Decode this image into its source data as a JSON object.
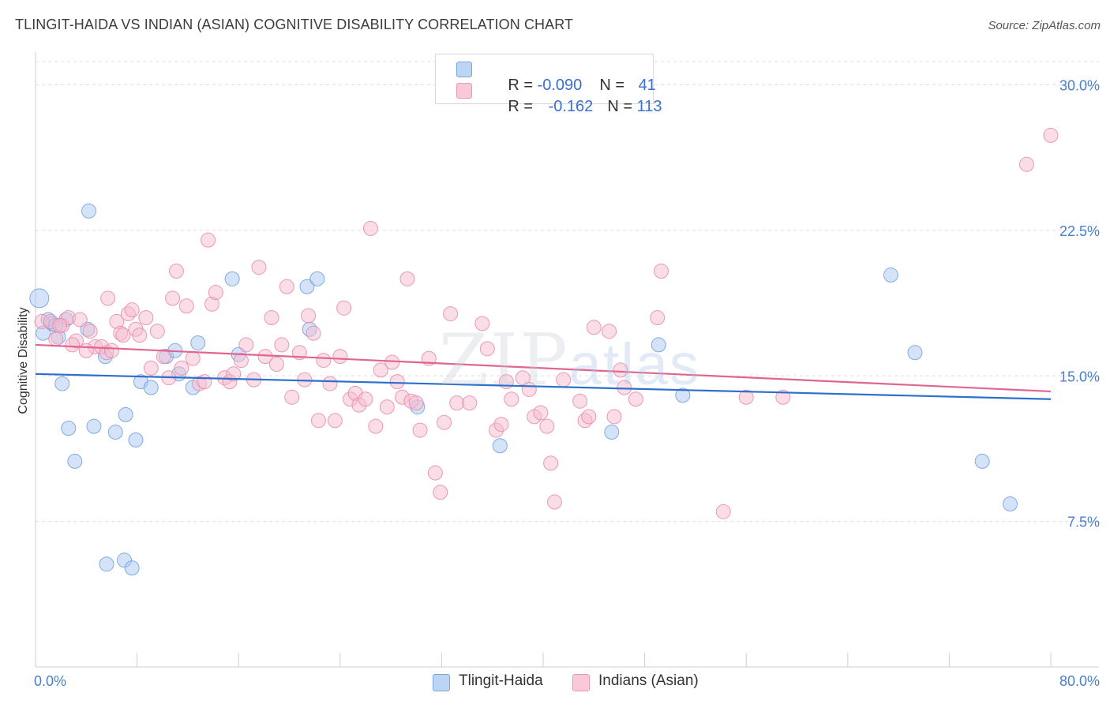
{
  "title": "TLINGIT-HAIDA VS INDIAN (ASIAN) COGNITIVE DISABILITY CORRELATION CHART",
  "source": "Source: ZipAtlas.com",
  "watermark": {
    "main": "ZIP",
    "sub": "atlas"
  },
  "legend": {
    "rows": [
      {
        "r_label": "R = ",
        "r_value": "-0.090",
        "n_label": "N = ",
        "n_value": "41"
      },
      {
        "r_label": "R = ",
        "r_value": "-0.162",
        "n_label": "N = ",
        "n_value": "113"
      }
    ]
  },
  "bottom_legend": [
    "Tlingit-Haida",
    "Indians (Asian)"
  ],
  "colors": {
    "blue_fill": "#a9c8f0",
    "blue_stroke": "#6f9fdc",
    "blue_line": "#2d6fcc",
    "pink_fill": "#f5bcd0",
    "pink_stroke": "#e888aa",
    "pink_line": "#e0658f",
    "tick_text": "#4a7fcf"
  },
  "chart_data": {
    "type": "scatter",
    "title": "TLINGIT-HAIDA VS INDIAN (ASIAN) COGNITIVE DISABILITY CORRELATION CHART",
    "xlabel": "",
    "ylabel": "Cognitive Disability",
    "xlim": [
      0,
      80
    ],
    "ylim": [
      0,
      31.2
    ],
    "x_tick_labels": [
      "0.0%",
      "80.0%"
    ],
    "y_ticks": [
      7.5,
      15.0,
      22.5,
      30.0
    ],
    "y_tick_labels": [
      "7.5%",
      "15.0%",
      "22.5%",
      "30.0%"
    ],
    "grid": true,
    "legend_position": "top-center",
    "series": [
      {
        "name": "Tlingit-Haida",
        "color": "#a9c8f0",
        "R": -0.09,
        "N": 41,
        "trend": {
          "x": [
            0,
            80
          ],
          "y": [
            15.1,
            13.8
          ]
        },
        "points": [
          [
            0.3,
            19.0
          ],
          [
            0.6,
            17.2
          ],
          [
            1.0,
            17.9
          ],
          [
            1.3,
            17.7
          ],
          [
            1.8,
            17.0
          ],
          [
            2.4,
            17.9
          ],
          [
            4.2,
            23.5
          ],
          [
            2.1,
            14.6
          ],
          [
            2.6,
            12.3
          ],
          [
            4.6,
            12.4
          ],
          [
            5.5,
            16.0
          ],
          [
            4.1,
            17.4
          ],
          [
            3.1,
            10.6
          ],
          [
            5.6,
            5.3
          ],
          [
            7.0,
            5.5
          ],
          [
            7.6,
            5.1
          ],
          [
            7.1,
            13.0
          ],
          [
            6.3,
            12.1
          ],
          [
            7.9,
            11.7
          ],
          [
            8.3,
            14.7
          ],
          [
            9.1,
            14.4
          ],
          [
            10.3,
            16.0
          ],
          [
            11.0,
            16.3
          ],
          [
            11.3,
            15.1
          ],
          [
            12.4,
            14.4
          ],
          [
            12.8,
            16.7
          ],
          [
            15.5,
            20.0
          ],
          [
            16.0,
            16.1
          ],
          [
            21.4,
            19.6
          ],
          [
            22.2,
            20.0
          ],
          [
            21.6,
            17.4
          ],
          [
            30.1,
            13.4
          ],
          [
            36.6,
            11.4
          ],
          [
            45.4,
            12.1
          ],
          [
            49.1,
            16.6
          ],
          [
            51.0,
            14.0
          ],
          [
            67.4,
            20.2
          ],
          [
            69.3,
            16.2
          ],
          [
            74.6,
            10.6
          ],
          [
            76.8,
            8.4
          ],
          [
            1.6,
            17.6
          ]
        ]
      },
      {
        "name": "Indians (Asian)",
        "color": "#f5bcd0",
        "R": -0.162,
        "N": 113,
        "trend": {
          "x": [
            0,
            80
          ],
          "y": [
            16.6,
            14.2
          ]
        },
        "points": [
          [
            0.5,
            17.8
          ],
          [
            1.2,
            17.8
          ],
          [
            1.6,
            16.9
          ],
          [
            2.1,
            17.6
          ],
          [
            2.6,
            18.0
          ],
          [
            3.2,
            16.8
          ],
          [
            3.5,
            17.9
          ],
          [
            4.3,
            17.3
          ],
          [
            4.7,
            16.5
          ],
          [
            5.2,
            16.5
          ],
          [
            5.7,
            19.0
          ],
          [
            5.6,
            16.2
          ],
          [
            6.0,
            16.3
          ],
          [
            6.4,
            17.8
          ],
          [
            6.7,
            17.2
          ],
          [
            6.9,
            17.1
          ],
          [
            7.3,
            18.2
          ],
          [
            7.6,
            18.4
          ],
          [
            7.9,
            17.4
          ],
          [
            8.2,
            17.1
          ],
          [
            8.7,
            18.0
          ],
          [
            9.1,
            15.4
          ],
          [
            9.6,
            17.3
          ],
          [
            10.1,
            16.0
          ],
          [
            10.5,
            14.9
          ],
          [
            10.8,
            19.0
          ],
          [
            11.1,
            20.4
          ],
          [
            11.5,
            15.4
          ],
          [
            11.9,
            18.6
          ],
          [
            12.4,
            15.9
          ],
          [
            12.9,
            14.6
          ],
          [
            13.3,
            14.7
          ],
          [
            13.6,
            22.0
          ],
          [
            13.9,
            18.7
          ],
          [
            14.2,
            19.3
          ],
          [
            14.9,
            14.9
          ],
          [
            15.3,
            14.7
          ],
          [
            15.6,
            15.1
          ],
          [
            16.2,
            15.8
          ],
          [
            16.6,
            16.6
          ],
          [
            17.2,
            14.8
          ],
          [
            17.6,
            20.6
          ],
          [
            18.1,
            16.0
          ],
          [
            18.6,
            18.0
          ],
          [
            19.0,
            15.6
          ],
          [
            19.4,
            16.6
          ],
          [
            19.8,
            19.6
          ],
          [
            20.2,
            13.9
          ],
          [
            20.8,
            16.2
          ],
          [
            21.2,
            14.8
          ],
          [
            21.5,
            18.1
          ],
          [
            21.9,
            17.2
          ],
          [
            22.3,
            12.7
          ],
          [
            22.7,
            15.8
          ],
          [
            23.2,
            14.6
          ],
          [
            23.6,
            12.7
          ],
          [
            24.0,
            16.0
          ],
          [
            24.3,
            18.5
          ],
          [
            24.8,
            13.8
          ],
          [
            25.2,
            14.1
          ],
          [
            25.5,
            13.5
          ],
          [
            26.0,
            13.8
          ],
          [
            26.4,
            22.6
          ],
          [
            26.8,
            12.4
          ],
          [
            27.2,
            15.3
          ],
          [
            27.7,
            13.4
          ],
          [
            28.1,
            15.7
          ],
          [
            28.5,
            14.7
          ],
          [
            28.9,
            13.9
          ],
          [
            29.3,
            20.0
          ],
          [
            29.6,
            13.7
          ],
          [
            30.0,
            13.6
          ],
          [
            30.3,
            12.2
          ],
          [
            31.0,
            15.9
          ],
          [
            31.5,
            10.0
          ],
          [
            31.9,
            9.0
          ],
          [
            32.2,
            12.6
          ],
          [
            32.7,
            18.2
          ],
          [
            33.2,
            13.6
          ],
          [
            34.2,
            13.6
          ],
          [
            35.2,
            17.7
          ],
          [
            35.6,
            16.4
          ],
          [
            36.3,
            12.2
          ],
          [
            36.7,
            12.5
          ],
          [
            37.1,
            14.7
          ],
          [
            37.5,
            13.8
          ],
          [
            38.4,
            14.9
          ],
          [
            38.9,
            14.3
          ],
          [
            39.3,
            12.9
          ],
          [
            39.8,
            13.1
          ],
          [
            40.3,
            12.4
          ],
          [
            40.6,
            10.5
          ],
          [
            40.9,
            8.5
          ],
          [
            41.6,
            14.8
          ],
          [
            42.9,
            13.7
          ],
          [
            43.3,
            12.7
          ],
          [
            43.6,
            12.9
          ],
          [
            44.0,
            17.5
          ],
          [
            45.2,
            17.3
          ],
          [
            45.6,
            12.9
          ],
          [
            46.1,
            15.3
          ],
          [
            46.4,
            14.4
          ],
          [
            47.3,
            13.8
          ],
          [
            49.0,
            18.0
          ],
          [
            49.3,
            20.4
          ],
          [
            54.2,
            8.0
          ],
          [
            56.0,
            13.9
          ],
          [
            58.9,
            13.9
          ],
          [
            78.1,
            25.9
          ],
          [
            80.0,
            27.4
          ],
          [
            2.9,
            16.6
          ],
          [
            1.9,
            17.6
          ],
          [
            4.0,
            16.3
          ]
        ]
      }
    ]
  }
}
